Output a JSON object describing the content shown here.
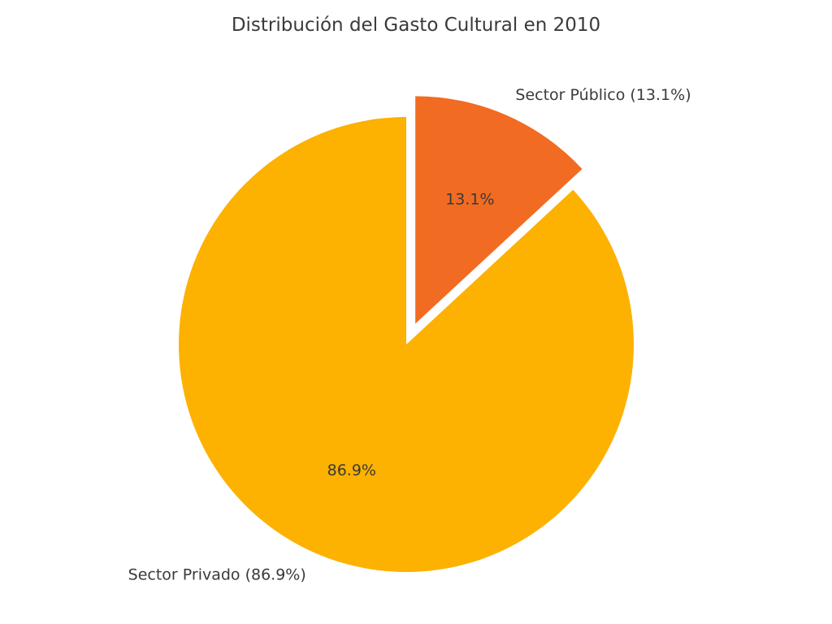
{
  "chart_data": {
    "type": "pie",
    "title": "Distribución del Gasto Cultural en 2010",
    "slices": [
      {
        "name": "Sector Público",
        "value": 13.1,
        "outer_label": "Sector Público (13.1%)",
        "pct_label": "13.1%",
        "color": "#f26b22",
        "exploded": true
      },
      {
        "name": "Sector Privado",
        "value": 86.9,
        "outer_label": "Sector Privado (86.9%)",
        "pct_label": "86.9%",
        "color": "#fdb100",
        "exploded": false
      }
    ]
  }
}
